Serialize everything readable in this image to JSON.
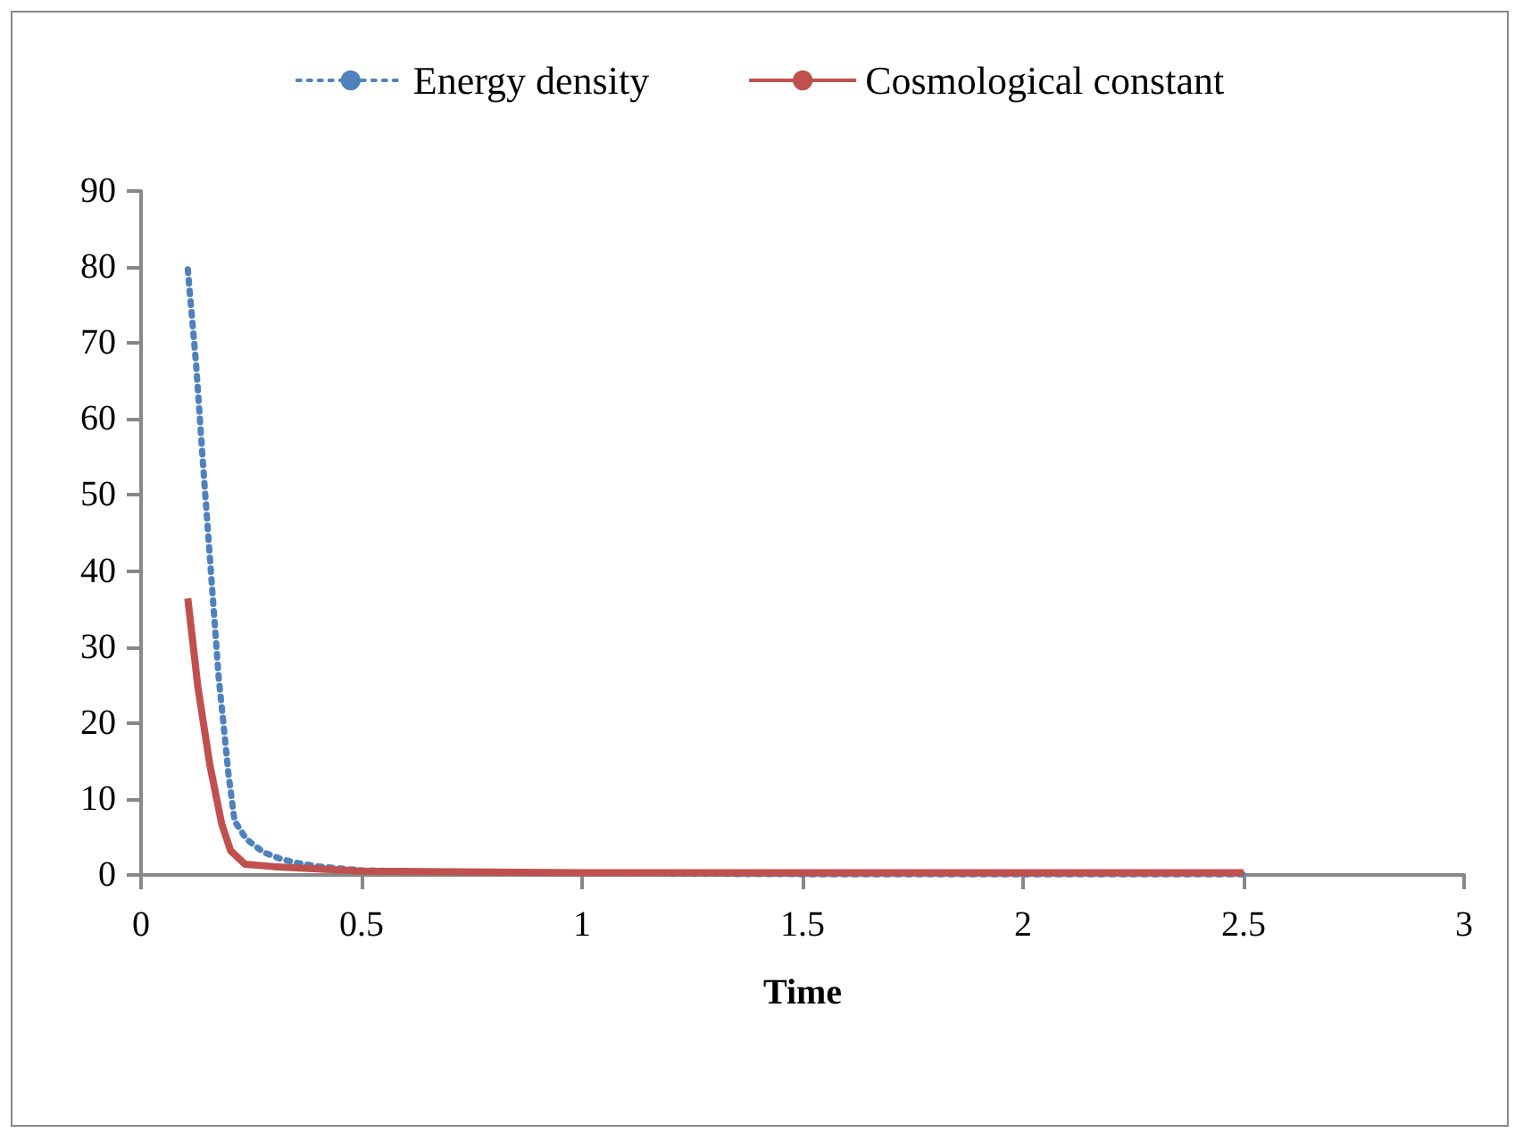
{
  "chart_data": {
    "type": "line",
    "xlabel": "Time",
    "xlim": [
      0,
      3
    ],
    "xticks": [
      0,
      0.5,
      1,
      1.5,
      2,
      2.5,
      3
    ],
    "ylim": [
      0,
      90
    ],
    "yticks": [
      0,
      10,
      20,
      30,
      40,
      50,
      60,
      70,
      80,
      90
    ],
    "grid": false,
    "legend": "top",
    "marker": "none",
    "series": [
      {
        "name": "Energy density",
        "color": "#4f81bd",
        "line_style": "dotted",
        "x": [
          0.106,
          0.125,
          0.14,
          0.152,
          0.164,
          0.176,
          0.187,
          0.198,
          0.212,
          0.239,
          0.277,
          0.317,
          0.36,
          0.405,
          0.5,
          0.75,
          1,
          1.5,
          2,
          2.5
        ],
        "values": [
          79.7,
          67.1,
          54.5,
          45,
          35.5,
          26,
          19.8,
          13.4,
          7.1,
          4.7,
          3,
          2.1,
          1.5,
          1.1,
          0.6,
          0.3,
          0.2,
          0.1,
          0.1,
          0.1
        ]
      },
      {
        "name": "Cosmological constant",
        "color": "#c0504d",
        "line_style": "solid",
        "x": [
          0.106,
          0.129,
          0.156,
          0.183,
          0.203,
          0.236,
          0.3,
          0.5,
          1,
          1.5,
          2,
          2.5
        ],
        "values": [
          36.4,
          24.7,
          14.5,
          6.7,
          3.2,
          1.4,
          1.1,
          0.5,
          0.3,
          0.3,
          0.3,
          0.3
        ]
      }
    ]
  }
}
